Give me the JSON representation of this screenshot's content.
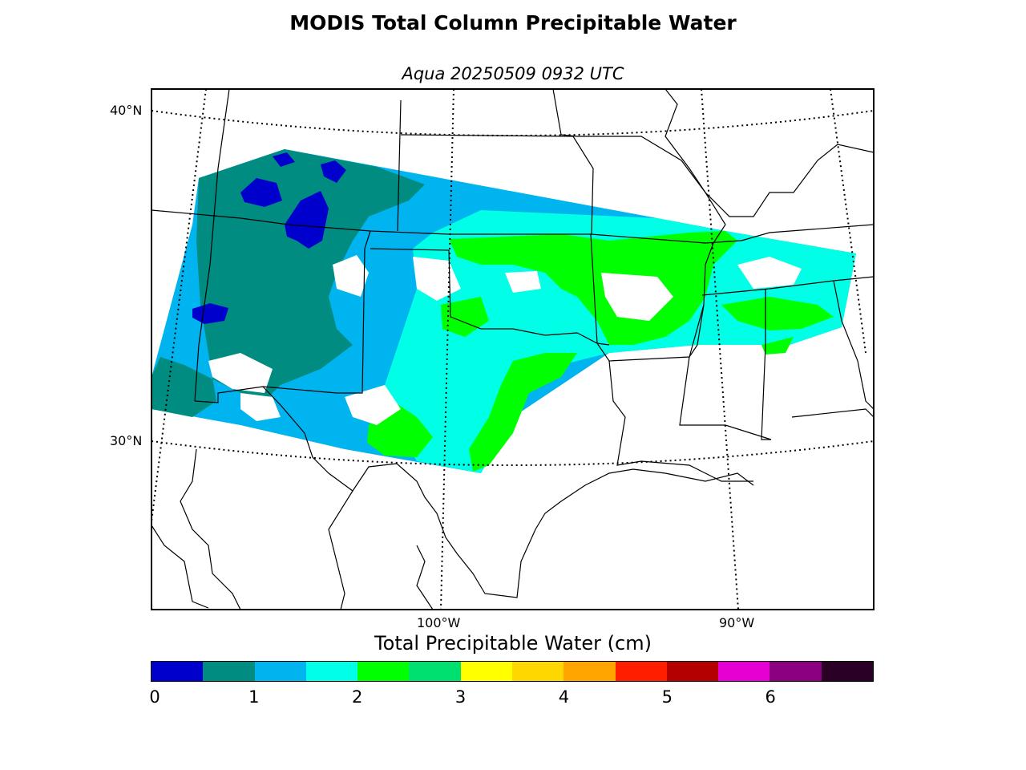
{
  "title": "MODIS Total Column Precipitable Water",
  "subtitle": "Aqua 20250509 0932 UTC",
  "map": {
    "lat_labels": [
      "40°N",
      "30°N"
    ],
    "lon_labels": [
      "100°W",
      "90°W"
    ]
  },
  "colorbar": {
    "label": "Total Precipitable Water (cm)",
    "ticks": [
      "0",
      "1",
      "2",
      "3",
      "4",
      "5",
      "6"
    ],
    "colors": [
      "#0000cc",
      "#008c80",
      "#00b4f0",
      "#00ffe6",
      "#00ff00",
      "#00e070",
      "#ffff00",
      "#ffd700",
      "#ffa500",
      "#ff1e00",
      "#b40000",
      "#e600d2",
      "#8c0080",
      "#2a0026"
    ],
    "range": [
      0,
      7
    ]
  },
  "legend": {
    "colors": {
      "land_outline": "#000000",
      "grid": "#000000",
      "missing": "#ffffff"
    }
  }
}
